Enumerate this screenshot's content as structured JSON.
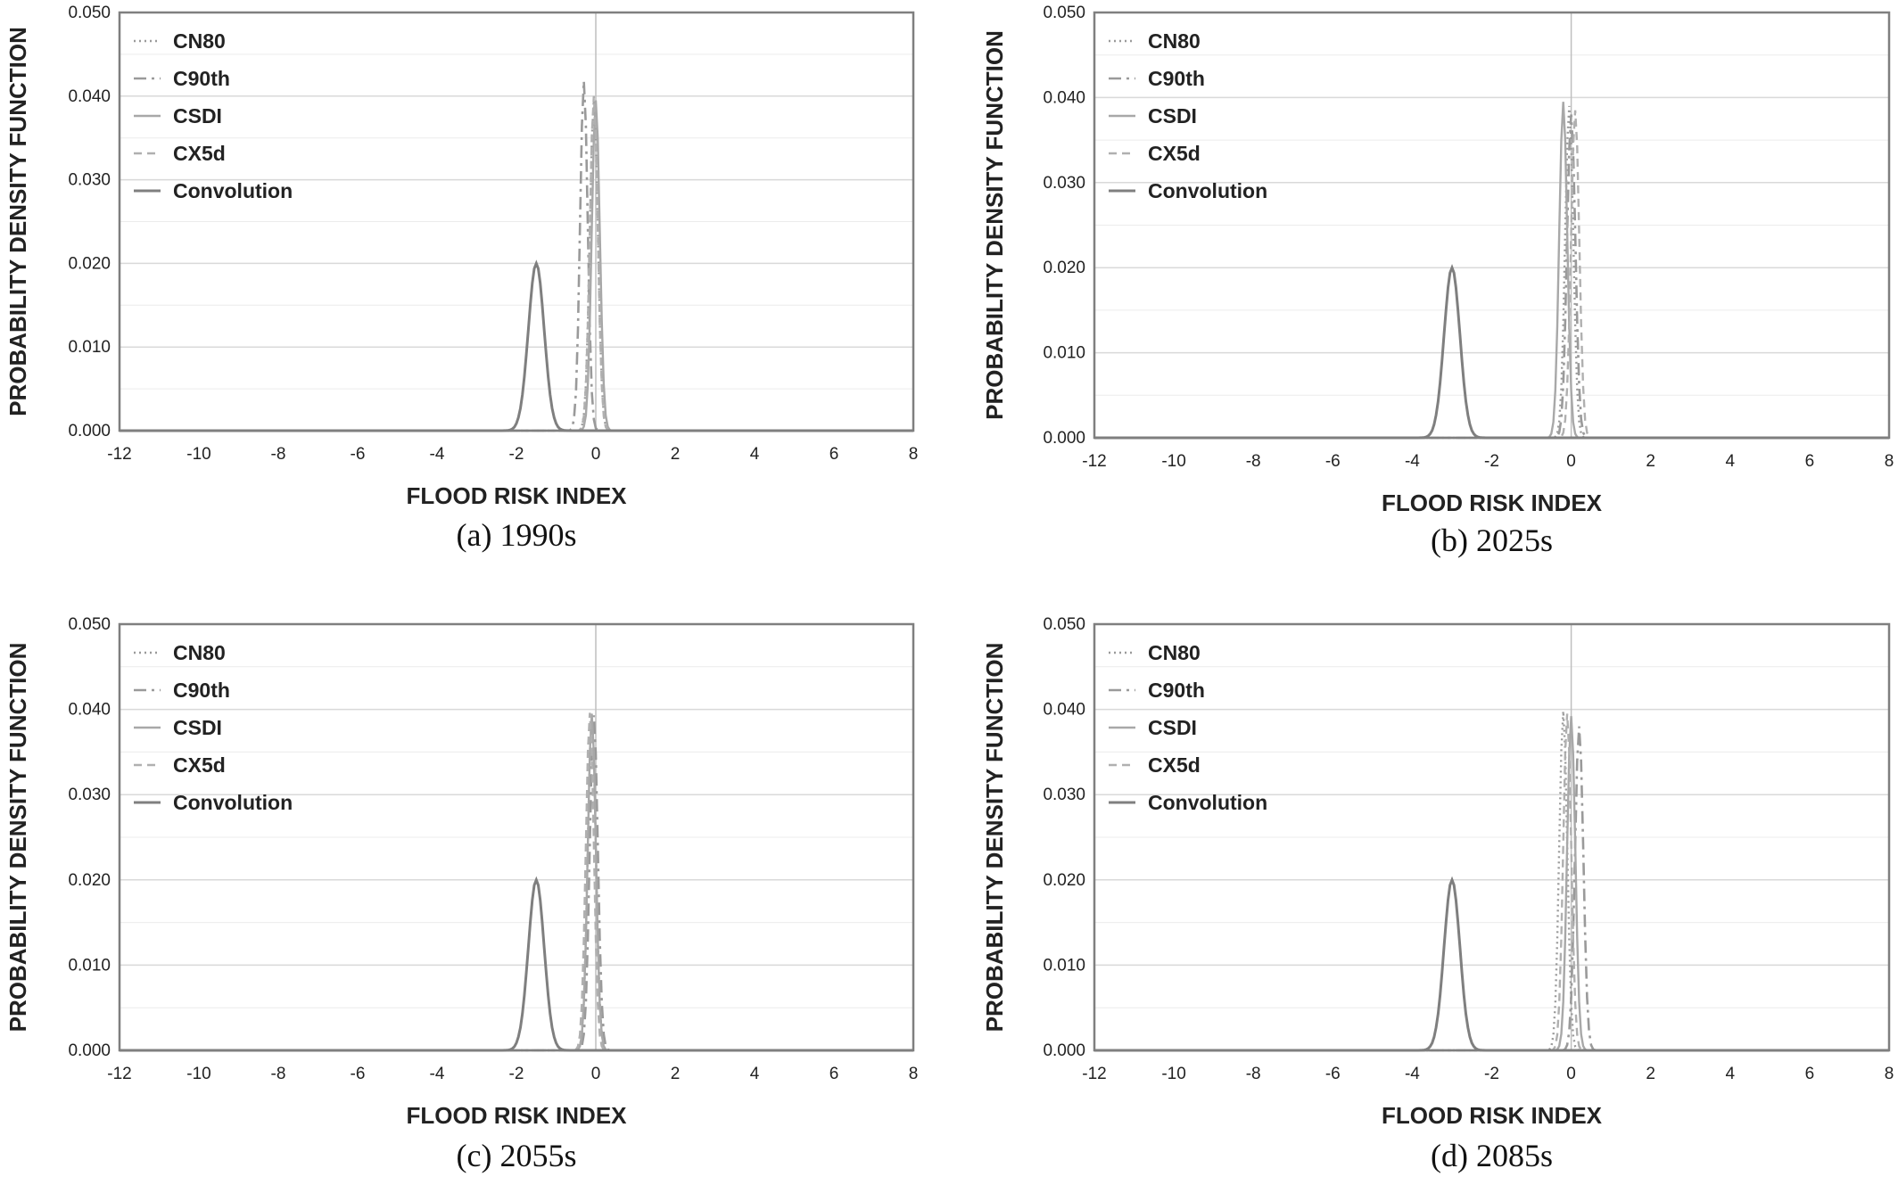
{
  "colors": {
    "frame": "#7f7f7f",
    "grid": "#d9d9d9",
    "zero_line": "#bfbfbf",
    "series_line": "#9a9a9a",
    "convolution": "#7f7f7f"
  },
  "chart_data": [
    {
      "type": "line",
      "caption": "(a) 1990s",
      "xlabel": "FLOOD RISK INDEX",
      "ylabel": "PROBABILITY DENSITY FUNCTION",
      "xlim": [
        -12,
        8
      ],
      "ylim": [
        0,
        0.05
      ],
      "xticks": [
        "-12",
        "-10",
        "-8",
        "-6",
        "-4",
        "-2",
        "0",
        "2",
        "4",
        "6",
        "8"
      ],
      "yticks": [
        "0.000",
        "0.010",
        "0.020",
        "0.030",
        "0.040",
        "0.050"
      ],
      "legend": "top-left",
      "grid": true,
      "series": [
        {
          "name": "CN80",
          "dash": "dotted",
          "mean": -0.05,
          "peak": 0.0395
        },
        {
          "name": "C90th",
          "dash": "dashdot",
          "mean": -0.3,
          "peak": 0.0418
        },
        {
          "name": "CSDI",
          "dash": "solid-light",
          "mean": 0.0,
          "peak": 0.0395
        },
        {
          "name": "CX5d",
          "dash": "dashed",
          "mean": -0.05,
          "peak": 0.04
        },
        {
          "name": "Convolution",
          "dash": "solid",
          "mean": -1.5,
          "peak": 0.02
        }
      ]
    },
    {
      "type": "line",
      "caption": "(b) 2025s",
      "xlabel": "FLOOD RISK INDEX",
      "ylabel": "PROBABILITY DENSITY FUNCTION",
      "xlim": [
        -12,
        8
      ],
      "ylim": [
        0,
        0.05
      ],
      "xticks": [
        "-12",
        "-10",
        "-8",
        "-6",
        "-4",
        "-2",
        "0",
        "2",
        "4",
        "6",
        "8"
      ],
      "yticks": [
        "0.000",
        "0.010",
        "0.020",
        "0.030",
        "0.040",
        "0.050"
      ],
      "legend": "top-left",
      "grid": true,
      "series": [
        {
          "name": "CN80",
          "dash": "dotted",
          "mean": -0.05,
          "peak": 0.039
        },
        {
          "name": "C90th",
          "dash": "dashdot",
          "mean": 0.0,
          "peak": 0.038
        },
        {
          "name": "CSDI",
          "dash": "solid-light",
          "mean": -0.2,
          "peak": 0.0395
        },
        {
          "name": "CX5d",
          "dash": "dashed",
          "mean": 0.1,
          "peak": 0.0385
        },
        {
          "name": "Convolution",
          "dash": "solid",
          "mean": -3.0,
          "peak": 0.02
        }
      ]
    },
    {
      "type": "line",
      "caption": "(c) 2055s",
      "xlabel": "FLOOD RISK INDEX",
      "ylabel": "PROBABILITY DENSITY FUNCTION",
      "xlim": [
        -12,
        8
      ],
      "ylim": [
        0,
        0.05
      ],
      "xticks": [
        "-12",
        "-10",
        "-8",
        "-6",
        "-4",
        "-2",
        "0",
        "2",
        "4",
        "6",
        "8"
      ],
      "yticks": [
        "0.000",
        "0.010",
        "0.020",
        "0.030",
        "0.040",
        "0.050"
      ],
      "legend": "top-left",
      "grid": true,
      "series": [
        {
          "name": "CN80",
          "dash": "dotted",
          "mean": -0.1,
          "peak": 0.0392
        },
        {
          "name": "C90th",
          "dash": "dashdot",
          "mean": -0.05,
          "peak": 0.0393
        },
        {
          "name": "CSDI",
          "dash": "solid-light",
          "mean": -0.1,
          "peak": 0.0395
        },
        {
          "name": "CX5d",
          "dash": "dashed",
          "mean": -0.15,
          "peak": 0.0396
        },
        {
          "name": "Convolution",
          "dash": "solid",
          "mean": -1.5,
          "peak": 0.02
        }
      ]
    },
    {
      "type": "line",
      "caption": "(d) 2085s",
      "xlabel": "FLOOD RISK INDEX",
      "ylabel": "PROBABILITY DENSITY FUNCTION",
      "xlim": [
        -12,
        8
      ],
      "ylim": [
        0,
        0.05
      ],
      "xticks": [
        "-12",
        "-10",
        "-8",
        "-6",
        "-4",
        "-2",
        "0",
        "2",
        "4",
        "6",
        "8"
      ],
      "yticks": [
        "0.000",
        "0.010",
        "0.020",
        "0.030",
        "0.040",
        "0.050"
      ],
      "legend": "top-left",
      "grid": true,
      "series": [
        {
          "name": "CN80",
          "dash": "dotted",
          "mean": -0.2,
          "peak": 0.0398
        },
        {
          "name": "C90th",
          "dash": "dashdot",
          "mean": 0.2,
          "peak": 0.038
        },
        {
          "name": "CSDI",
          "dash": "solid-light",
          "mean": 0.0,
          "peak": 0.0392
        },
        {
          "name": "CX5d",
          "dash": "dashed",
          "mean": -0.1,
          "peak": 0.0395
        },
        {
          "name": "Convolution",
          "dash": "solid",
          "mean": -3.0,
          "peak": 0.02
        }
      ]
    }
  ]
}
